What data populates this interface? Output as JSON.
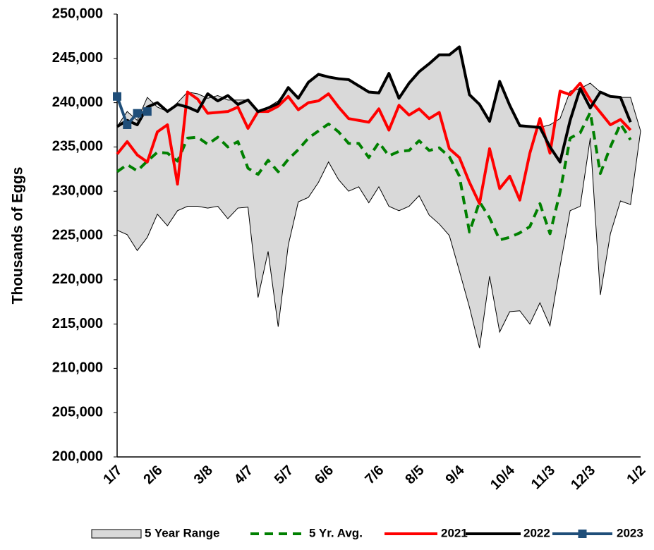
{
  "chart_data": {
    "type": "line",
    "y_label": "Thousands of Eggs",
    "categories": [
      "1/7",
      null,
      null,
      null,
      "2/6",
      null,
      null,
      null,
      null,
      "3/8",
      null,
      null,
      null,
      "4/7",
      null,
      null,
      null,
      "5/7",
      null,
      null,
      null,
      "6/6",
      null,
      null,
      null,
      null,
      "7/6",
      null,
      null,
      null,
      "8/5",
      null,
      null,
      null,
      "9/4",
      null,
      null,
      null,
      null,
      "10/4",
      null,
      null,
      null,
      "11/3",
      null,
      null,
      null,
      "12/3",
      null,
      null,
      null,
      null,
      "1/2"
    ],
    "ylim": [
      200000,
      250000
    ],
    "yticks": [
      {
        "value": 200000,
        "label": "200,000"
      },
      {
        "value": 205000,
        "label": "205,000"
      },
      {
        "value": 210000,
        "label": "210,000"
      },
      {
        "value": 215000,
        "label": "215,000"
      },
      {
        "value": 220000,
        "label": "220,000"
      },
      {
        "value": 225000,
        "label": "225,000"
      },
      {
        "value": 230000,
        "label": "230,000"
      },
      {
        "value": 235000,
        "label": "235,000"
      },
      {
        "value": 240000,
        "label": "240,000"
      },
      {
        "value": 245000,
        "label": "245,000"
      },
      {
        "value": 250000,
        "label": "250,000"
      }
    ],
    "range": {
      "name": "5 Year Range",
      "color": "#d9d9d9",
      "high": [
        237300,
        239000,
        238000,
        240600,
        239500,
        239000,
        240000,
        241200,
        241000,
        240500,
        240800,
        240300,
        240300,
        240300,
        239000,
        239500,
        240200,
        241700,
        240500,
        242300,
        243200,
        242900,
        242700,
        242600,
        241900,
        241200,
        241100,
        243300,
        240500,
        242200,
        243500,
        244400,
        245400,
        245400,
        246300,
        240900,
        239800,
        237900,
        242400,
        239700,
        237400,
        237300,
        237200,
        237500,
        238200,
        241300,
        241600,
        242200,
        241200,
        240700,
        240600,
        240600,
        236800
      ],
      "low": [
        225600,
        225100,
        223300,
        224800,
        227400,
        226100,
        227800,
        228300,
        228300,
        228100,
        228300,
        226900,
        228100,
        228200,
        218000,
        223200,
        214700,
        223900,
        228800,
        229300,
        231000,
        233300,
        231300,
        230000,
        230500,
        228700,
        230500,
        228300,
        227800,
        228300,
        229500,
        227300,
        226300,
        225000,
        221000,
        216900,
        212300,
        220400,
        214100,
        216400,
        216500,
        215000,
        217400,
        214800,
        221500,
        227800,
        228300,
        236000,
        218300,
        225200,
        228900,
        228500,
        236800
      ]
    },
    "series": [
      {
        "name": "5 Yr. Avg.",
        "color": "#008000",
        "dashed": true,
        "values": [
          232200,
          233000,
          232300,
          233400,
          234400,
          234300,
          233400,
          236000,
          236100,
          235300,
          236100,
          235000,
          235600,
          232600,
          231900,
          233500,
          232200,
          233600,
          234700,
          236000,
          236800,
          237600,
          236700,
          235400,
          235400,
          233800,
          235500,
          234000,
          234500,
          234600,
          235700,
          234600,
          234900,
          233900,
          231700,
          225400,
          228800,
          227000,
          224500,
          224800,
          225300,
          226000,
          228600,
          225200,
          229900,
          236000,
          236600,
          238900,
          232000,
          235000,
          237600,
          235800,
          null
        ]
      },
      {
        "name": "2021",
        "color": "#ff0000",
        "values": [
          234200,
          235600,
          234100,
          233300,
          236700,
          237500,
          230800,
          241200,
          240400,
          238800,
          238900,
          239000,
          239500,
          237100,
          239000,
          239000,
          239600,
          240700,
          239200,
          240000,
          240200,
          241000,
          239500,
          238200,
          238000,
          237800,
          239300,
          236900,
          239700,
          238600,
          239300,
          238200,
          238900,
          234800,
          233800,
          231000,
          228600,
          234800,
          230300,
          231700,
          229000,
          234300,
          238200,
          234300,
          241300,
          240900,
          242200,
          240300,
          238900,
          237500,
          238100,
          236900,
          null
        ]
      },
      {
        "name": "2022",
        "color": "#000000",
        "values": [
          237300,
          238000,
          237500,
          239500,
          240000,
          239000,
          239800,
          239500,
          239000,
          241000,
          240200,
          240800,
          239800,
          240300,
          239000,
          239400,
          239900,
          241700,
          240500,
          242300,
          243200,
          242900,
          242700,
          242600,
          241900,
          241200,
          241100,
          243300,
          240500,
          242200,
          243500,
          244400,
          245400,
          245400,
          246300,
          240900,
          239800,
          237900,
          242400,
          239700,
          237400,
          237300,
          237200,
          235000,
          233300,
          238000,
          241600,
          239400,
          241200,
          240700,
          240600,
          237800,
          null
        ]
      },
      {
        "name": "2023",
        "color": "#1f4e79",
        "markers": true,
        "values": [
          240700,
          237500,
          238800,
          239000,
          null,
          null,
          null,
          null,
          null,
          null,
          null,
          null,
          null,
          null,
          null,
          null,
          null,
          null,
          null,
          null,
          null,
          null,
          null,
          null,
          null,
          null,
          null,
          null,
          null,
          null,
          null,
          null,
          null,
          null,
          null,
          null,
          null,
          null,
          null,
          null,
          null,
          null,
          null,
          null,
          null,
          null,
          null,
          null,
          null,
          null,
          null,
          null,
          null
        ]
      }
    ]
  }
}
